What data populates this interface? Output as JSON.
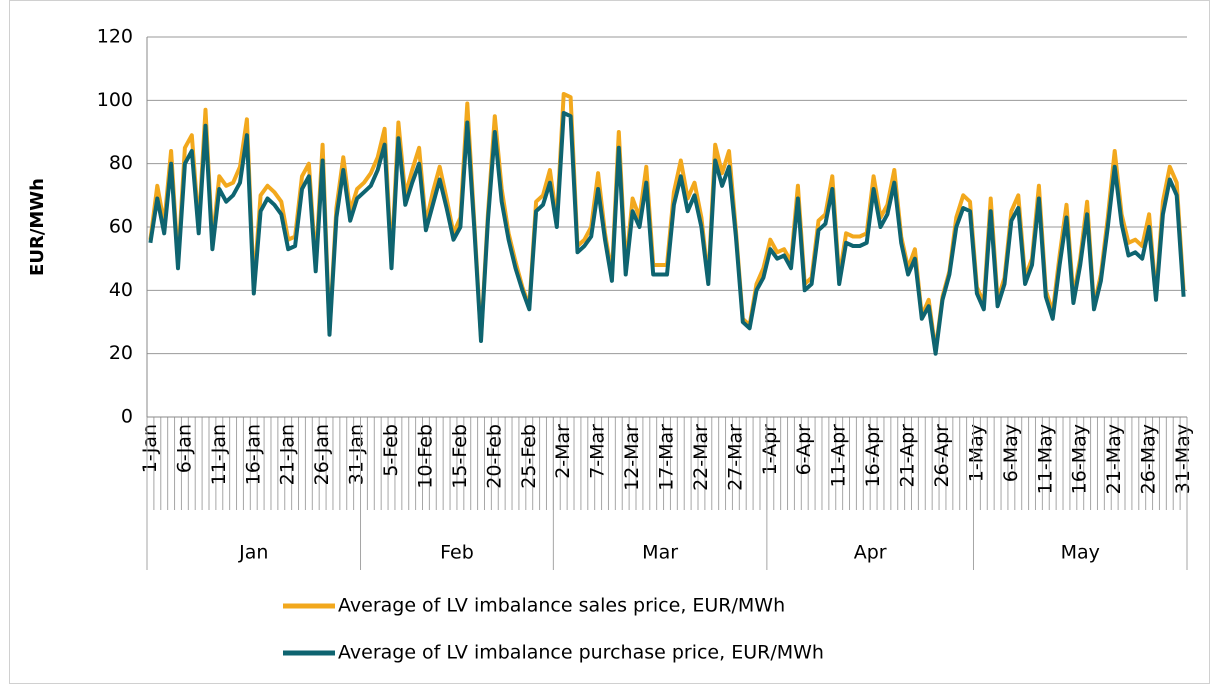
{
  "chart_data": {
    "type": "line",
    "y_label": "EUR/MWh",
    "ylim": [
      0,
      120
    ],
    "yticks": [
      0,
      20,
      40,
      60,
      80,
      100,
      120
    ],
    "grid": true,
    "legend": "bottom",
    "categories": [
      "1-Jan",
      null,
      null,
      null,
      null,
      "6-Jan",
      null,
      null,
      null,
      null,
      "11-Jan",
      null,
      null,
      null,
      null,
      "16-Jan",
      null,
      null,
      null,
      null,
      "21-Jan",
      null,
      null,
      null,
      null,
      "26-Jan",
      null,
      null,
      null,
      null,
      "31-Jan",
      null,
      null,
      null,
      null,
      "5-Feb",
      null,
      null,
      null,
      null,
      "10-Feb",
      null,
      null,
      null,
      null,
      "15-Feb",
      null,
      null,
      null,
      null,
      "20-Feb",
      null,
      null,
      null,
      null,
      "25-Feb",
      null,
      null,
      null,
      null,
      "2-Mar",
      null,
      null,
      null,
      null,
      "7-Mar",
      null,
      null,
      null,
      null,
      "12-Mar",
      null,
      null,
      null,
      null,
      "17-Mar",
      null,
      null,
      null,
      null,
      "22-Mar",
      null,
      null,
      null,
      null,
      "27-Mar",
      null,
      null,
      null,
      null,
      "1-Apr",
      null,
      null,
      null,
      null,
      "6-Apr",
      null,
      null,
      null,
      null,
      "11-Apr",
      null,
      null,
      null,
      null,
      "16-Apr",
      null,
      null,
      null,
      null,
      "21-Apr",
      null,
      null,
      null,
      null,
      "26-Apr",
      null,
      null,
      null,
      null,
      "1-May",
      null,
      null,
      null,
      null,
      "6-May",
      null,
      null,
      null,
      null,
      "11-May",
      null,
      null,
      null,
      null,
      "16-May",
      null,
      null,
      null,
      null,
      "21-May",
      null,
      null,
      null,
      null,
      "26-May",
      null,
      null,
      null,
      null,
      "31-May"
    ],
    "groups": [
      {
        "label": "Jan",
        "count": 31
      },
      {
        "label": "Feb",
        "count": 28
      },
      {
        "label": "Mar",
        "count": 31
      },
      {
        "label": "Apr",
        "count": 30
      },
      {
        "label": "May",
        "count": 31
      }
    ],
    "series": [
      {
        "name": "Average of LV imbalance sales price, EUR/MWh",
        "color": "#f2a81d",
        "values": [
          56,
          73,
          61,
          84,
          49,
          85,
          89,
          60,
          97,
          55,
          76,
          73,
          74,
          79,
          94,
          41,
          70,
          73,
          71,
          68,
          56,
          57,
          76,
          80,
          48,
          86,
          27,
          66,
          82,
          65,
          72,
          74,
          77,
          82,
          91,
          49,
          93,
          70,
          78,
          85,
          61,
          71,
          79,
          69,
          58,
          63,
          99,
          62,
          25,
          64,
          95,
          72,
          58,
          49,
          41,
          35,
          68,
          70,
          78,
          62,
          102,
          101,
          54,
          56,
          60,
          77,
          58,
          45,
          90,
          47,
          69,
          63,
          79,
          48,
          48,
          48,
          71,
          81,
          69,
          74,
          63,
          43,
          86,
          77,
          84,
          59,
          31,
          29,
          42,
          47,
          56,
          52,
          53,
          49,
          73,
          42,
          44,
          62,
          64,
          76,
          44,
          58,
          57,
          57,
          58,
          76,
          63,
          67,
          78,
          57,
          47,
          53,
          32,
          37,
          21,
          38,
          46,
          63,
          70,
          68,
          41,
          36,
          69,
          37,
          44,
          65,
          70,
          44,
          50,
          73,
          40,
          33,
          51,
          67,
          38,
          50,
          68,
          35,
          45,
          63,
          84,
          64,
          55,
          56,
          54,
          64,
          38,
          68,
          79,
          74,
          40
        ]
      },
      {
        "name": "Average of LV imbalance purchase price, EUR/MWh",
        "color": "#0e6470",
        "values": [
          55,
          69,
          58,
          80,
          47,
          80,
          84,
          58,
          92,
          53,
          72,
          68,
          70,
          74,
          89,
          39,
          65,
          69,
          67,
          64,
          53,
          54,
          72,
          76,
          46,
          81,
          26,
          63,
          78,
          62,
          69,
          71,
          73,
          78,
          86,
          47,
          88,
          67,
          74,
          80,
          59,
          67,
          75,
          66,
          56,
          60,
          93,
          60,
          24,
          62,
          90,
          68,
          56,
          47,
          40,
          34,
          65,
          67,
          74,
          60,
          96,
          95,
          52,
          54,
          57,
          72,
          56,
          43,
          85,
          45,
          65,
          60,
          74,
          45,
          45,
          45,
          67,
          76,
          65,
          70,
          60,
          42,
          81,
          73,
          79,
          57,
          30,
          28,
          40,
          44,
          53,
          50,
          51,
          47,
          69,
          40,
          42,
          59,
          61,
          72,
          42,
          55,
          54,
          54,
          55,
          72,
          60,
          64,
          74,
          55,
          45,
          50,
          31,
          35,
          20,
          37,
          45,
          60,
          66,
          65,
          39,
          34,
          65,
          35,
          42,
          62,
          66,
          42,
          48,
          69,
          38,
          31,
          48,
          63,
          36,
          48,
          64,
          34,
          43,
          60,
          79,
          61,
          51,
          52,
          50,
          60,
          37,
          64,
          75,
          70,
          38
        ]
      }
    ]
  }
}
